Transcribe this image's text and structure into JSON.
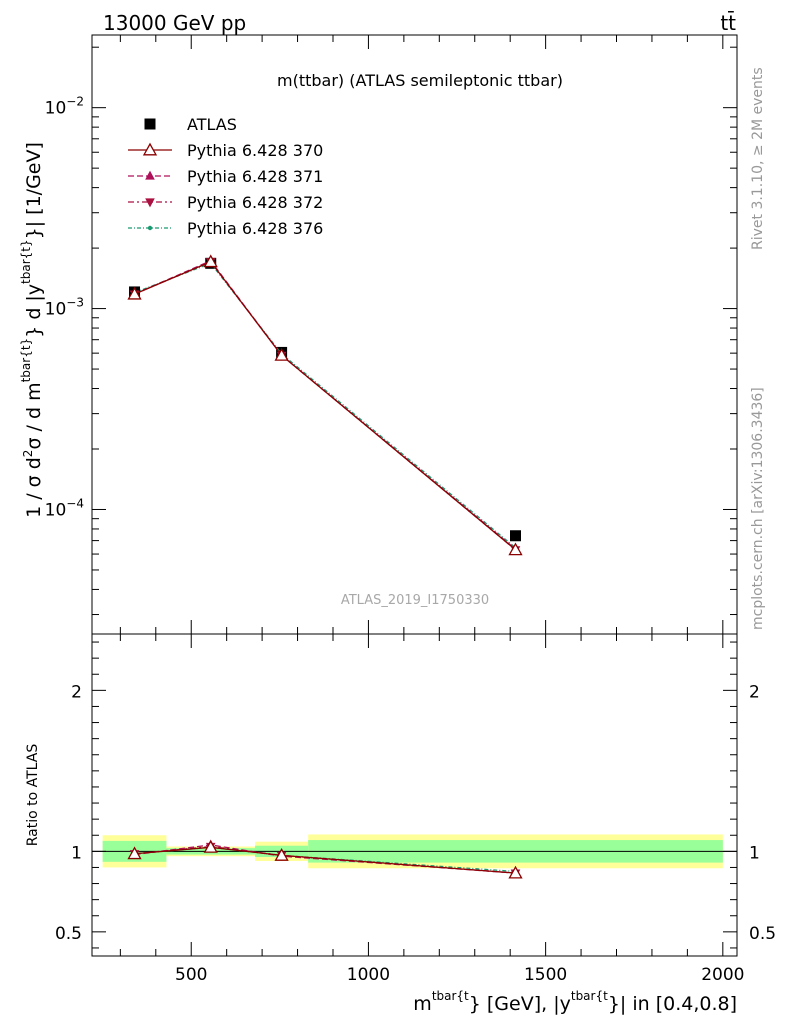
{
  "header": {
    "left": "13000 GeV pp",
    "right": "tt̄"
  },
  "side_labels": {
    "rivet": "Rivet 3.1.10, ≥ 2M events",
    "mcplots": "mcplots.cern.ch [arXiv:1306.3436]"
  },
  "chart_data": {
    "type": "scatter",
    "title": "m(ttbar) (ATLAS semileptonic ttbar)",
    "watermark": "ATLAS_2019_I1750330",
    "xlabel": "m^{tbar{t}} [GeV], |y^{tbar{t}}| in [0.4,0.8]",
    "xlabel_parts": {
      "m": "m",
      "sup1": "tbar{t",
      "mid": "} [GeV], |y",
      "sup2": "tbar{t",
      "end": "}| in [0.4,0.8]"
    },
    "ylabel": "1 / σ d²σ / d m^{tbar{t}} d |y^{tbar{t}}| [1/GeV]",
    "ylabel_parts": {
      "a": "1 / σ d",
      "b": "2",
      "c": "σ / d m",
      "d": "tbar{t}",
      "e": "} d |y",
      "f": "tbar{t}",
      "g": "}| [1/GeV]"
    },
    "ratio_ylabel": "Ratio to ATLAS",
    "xlim": [
      220,
      2040
    ],
    "ylim": [
      2.4e-05,
      0.023
    ],
    "ylog": true,
    "ratio_ylim": [
      0.35,
      2.35
    ],
    "x_ticks": [
      500,
      1000,
      1500,
      2000
    ],
    "x_tick_labels": [
      "500",
      "1000",
      "1500",
      "2000"
    ],
    "y_major_ticks": [
      0.0001,
      0.001,
      0.01
    ],
    "y_tick_labels": [
      {
        "base": "10",
        "exp": "−4"
      },
      {
        "base": "10",
        "exp": "−3"
      },
      {
        "base": "10",
        "exp": "−2"
      }
    ],
    "ratio_ticks": [
      0.5,
      1,
      2
    ],
    "ratio_tick_labels": [
      "0.5",
      "1",
      "2"
    ],
    "x_centers": [
      340,
      555,
      755,
      1415
    ],
    "bins": [
      [
        250,
        430
      ],
      [
        430,
        680
      ],
      [
        680,
        830
      ],
      [
        830,
        2000
      ]
    ],
    "data": {
      "name": "ATLAS",
      "values": [
        0.00121,
        0.00168,
        0.000605,
        7.4e-05
      ],
      "band_inner": [
        0.065,
        0.02,
        0.035,
        0.07
      ],
      "band_outer": [
        0.1,
        0.03,
        0.06,
        0.105
      ]
    },
    "series": [
      {
        "name": "Pythia 6.428 370",
        "values": [
          0.00118,
          0.00171,
          0.000585,
          6.3e-05
        ],
        "ratio": [
          0.985,
          1.025,
          0.975,
          0.865
        ],
        "color": "#8b0000",
        "marker": "triangle-open",
        "dash": ""
      },
      {
        "name": "Pythia 6.428 371",
        "values": [
          0.00118,
          0.00173,
          0.000585,
          6.35e-05
        ],
        "ratio": [
          0.98,
          1.04,
          0.97,
          0.865
        ],
        "color": "#b0105a",
        "marker": "triangle",
        "dash": "6,3"
      },
      {
        "name": "Pythia 6.428 372",
        "values": [
          0.00118,
          0.00171,
          0.000585,
          6.3e-05
        ],
        "ratio": [
          0.985,
          1.03,
          0.975,
          0.865
        ],
        "color": "#aa1040",
        "marker": "triangle-down",
        "dash": "6,3,2,3"
      },
      {
        "name": "Pythia 6.428 376",
        "values": [
          0.0012,
          0.00168,
          0.000595,
          6.45e-05
        ],
        "ratio": [
          0.985,
          1.025,
          0.975,
          0.875
        ],
        "color": "#1a9a70",
        "marker": "dot",
        "dash": "4,2,1,2"
      }
    ],
    "legend_position": "top-left",
    "colors": {
      "band_inner": "#99ff99",
      "band_outer": "#ffff99",
      "data_marker": "#000000"
    }
  }
}
